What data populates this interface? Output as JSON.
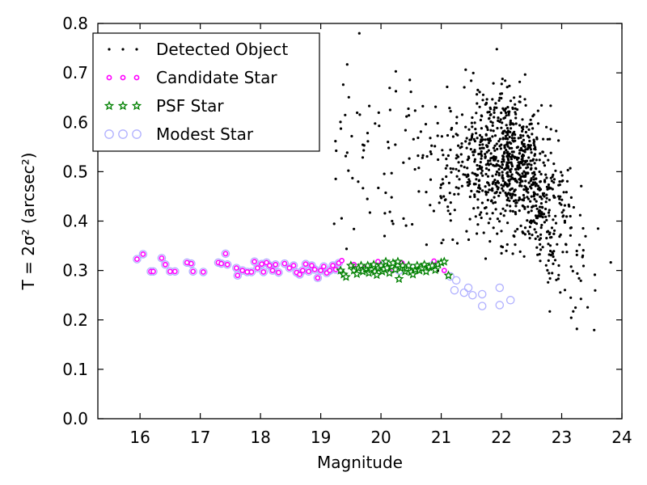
{
  "chart_data": {
    "type": "scatter",
    "xlabel": "Magnitude",
    "ylabel": "T = 2σ² (arcsec²)",
    "xlim": [
      15.3,
      24.0
    ],
    "ylim": [
      0.0,
      0.8
    ],
    "xticks": [
      16,
      17,
      18,
      19,
      20,
      21,
      22,
      23,
      24
    ],
    "yticks": [
      0.0,
      0.1,
      0.2,
      0.3,
      0.4,
      0.5,
      0.6,
      0.7,
      0.8
    ],
    "grid": false,
    "legend_position": "top-left",
    "series": [
      {
        "name": "Detected Object",
        "marker": "dot",
        "color": "#000000",
        "cloud": {
          "x_range": [
            19.0,
            24.0
          ],
          "y_range": [
            0.0,
            0.8
          ],
          "count": 1100,
          "peak_magnitude": 22.2,
          "note_visual": "dense cloud widening and dropping toward faint magnitudes"
        }
      },
      {
        "name": "Candidate Star",
        "marker": "dot",
        "color": "#ff00ff",
        "points": [
          [
            15.95,
            0.323
          ],
          [
            16.05,
            0.333
          ],
          [
            16.18,
            0.298
          ],
          [
            16.22,
            0.298
          ],
          [
            16.36,
            0.325
          ],
          [
            16.42,
            0.312
          ],
          [
            16.5,
            0.298
          ],
          [
            16.58,
            0.298
          ],
          [
            16.78,
            0.316
          ],
          [
            16.85,
            0.314
          ],
          [
            16.88,
            0.298
          ],
          [
            17.05,
            0.297
          ],
          [
            17.3,
            0.316
          ],
          [
            17.35,
            0.314
          ],
          [
            17.42,
            0.334
          ],
          [
            17.45,
            0.312
          ],
          [
            17.6,
            0.305
          ],
          [
            17.62,
            0.29
          ],
          [
            17.7,
            0.3
          ],
          [
            17.78,
            0.297
          ],
          [
            17.85,
            0.297
          ],
          [
            17.9,
            0.318
          ],
          [
            17.95,
            0.305
          ],
          [
            18.02,
            0.313
          ],
          [
            18.05,
            0.297
          ],
          [
            18.1,
            0.316
          ],
          [
            18.15,
            0.31
          ],
          [
            18.2,
            0.3
          ],
          [
            18.25,
            0.312
          ],
          [
            18.3,
            0.296
          ],
          [
            18.4,
            0.314
          ],
          [
            18.48,
            0.305
          ],
          [
            18.55,
            0.31
          ],
          [
            18.6,
            0.296
          ],
          [
            18.65,
            0.292
          ],
          [
            18.7,
            0.3
          ],
          [
            18.75,
            0.313
          ],
          [
            18.8,
            0.298
          ],
          [
            18.85,
            0.31
          ],
          [
            18.9,
            0.302
          ],
          [
            18.95,
            0.285
          ],
          [
            19.0,
            0.3
          ],
          [
            19.05,
            0.308
          ],
          [
            19.1,
            0.295
          ],
          [
            19.15,
            0.3
          ],
          [
            19.2,
            0.31
          ],
          [
            19.25,
            0.302
          ],
          [
            19.3,
            0.315
          ],
          [
            19.35,
            0.32
          ],
          [
            19.55,
            0.312
          ],
          [
            19.72,
            0.305
          ],
          [
            19.95,
            0.318
          ],
          [
            20.15,
            0.298
          ],
          [
            20.35,
            0.315
          ],
          [
            20.6,
            0.305
          ],
          [
            20.88,
            0.319
          ],
          [
            21.05,
            0.3
          ]
        ]
      },
      {
        "name": "PSF Star",
        "marker": "star",
        "color": "#008000",
        "points": [
          [
            19.33,
            0.3
          ],
          [
            19.38,
            0.292
          ],
          [
            19.42,
            0.287
          ],
          [
            19.5,
            0.31
          ],
          [
            19.55,
            0.3
          ],
          [
            19.6,
            0.293
          ],
          [
            19.63,
            0.305
          ],
          [
            19.67,
            0.31
          ],
          [
            19.7,
            0.298
          ],
          [
            19.75,
            0.304
          ],
          [
            19.78,
            0.31
          ],
          [
            19.8,
            0.295
          ],
          [
            19.84,
            0.302
          ],
          [
            19.88,
            0.312
          ],
          [
            19.9,
            0.298
          ],
          [
            19.93,
            0.291
          ],
          [
            19.96,
            0.305
          ],
          [
            20.0,
            0.31
          ],
          [
            20.02,
            0.298
          ],
          [
            20.05,
            0.303
          ],
          [
            20.08,
            0.318
          ],
          [
            20.1,
            0.305
          ],
          [
            20.14,
            0.295
          ],
          [
            20.18,
            0.308
          ],
          [
            20.2,
            0.315
          ],
          [
            20.24,
            0.302
          ],
          [
            20.28,
            0.318
          ],
          [
            20.3,
            0.283
          ],
          [
            20.33,
            0.305
          ],
          [
            20.36,
            0.31
          ],
          [
            20.4,
            0.298
          ],
          [
            20.43,
            0.304
          ],
          [
            20.46,
            0.31
          ],
          [
            20.5,
            0.297
          ],
          [
            20.53,
            0.292
          ],
          [
            20.57,
            0.302
          ],
          [
            20.6,
            0.31
          ],
          [
            20.64,
            0.3
          ],
          [
            20.68,
            0.305
          ],
          [
            20.72,
            0.312
          ],
          [
            20.75,
            0.298
          ],
          [
            20.8,
            0.307
          ],
          [
            20.85,
            0.31
          ],
          [
            20.9,
            0.301
          ],
          [
            20.95,
            0.312
          ],
          [
            21.0,
            0.316
          ],
          [
            21.05,
            0.318
          ],
          [
            21.12,
            0.29
          ]
        ]
      },
      {
        "name": "Modest Star",
        "marker": "circle",
        "color": "#b0b0ff",
        "points": [
          [
            15.95,
            0.323
          ],
          [
            16.05,
            0.333
          ],
          [
            16.18,
            0.298
          ],
          [
            16.22,
            0.298
          ],
          [
            16.36,
            0.325
          ],
          [
            16.42,
            0.312
          ],
          [
            16.5,
            0.298
          ],
          [
            16.58,
            0.298
          ],
          [
            16.78,
            0.316
          ],
          [
            16.85,
            0.314
          ],
          [
            16.88,
            0.298
          ],
          [
            17.05,
            0.297
          ],
          [
            17.3,
            0.316
          ],
          [
            17.35,
            0.314
          ],
          [
            17.42,
            0.334
          ],
          [
            17.45,
            0.312
          ],
          [
            17.6,
            0.305
          ],
          [
            17.62,
            0.29
          ],
          [
            17.7,
            0.3
          ],
          [
            17.78,
            0.297
          ],
          [
            17.85,
            0.297
          ],
          [
            17.9,
            0.318
          ],
          [
            17.95,
            0.305
          ],
          [
            18.02,
            0.313
          ],
          [
            18.05,
            0.297
          ],
          [
            18.1,
            0.316
          ],
          [
            18.15,
            0.31
          ],
          [
            18.2,
            0.3
          ],
          [
            18.25,
            0.312
          ],
          [
            18.3,
            0.296
          ],
          [
            18.4,
            0.314
          ],
          [
            18.48,
            0.305
          ],
          [
            18.55,
            0.31
          ],
          [
            18.6,
            0.296
          ],
          [
            18.65,
            0.292
          ],
          [
            18.7,
            0.3
          ],
          [
            18.75,
            0.313
          ],
          [
            18.8,
            0.298
          ],
          [
            18.85,
            0.31
          ],
          [
            18.9,
            0.302
          ],
          [
            18.95,
            0.285
          ],
          [
            19.0,
            0.3
          ],
          [
            19.05,
            0.308
          ],
          [
            19.1,
            0.295
          ],
          [
            19.15,
            0.3
          ],
          [
            19.2,
            0.31
          ],
          [
            19.25,
            0.302
          ],
          [
            19.3,
            0.315
          ],
          [
            19.6,
            0.3
          ],
          [
            19.85,
            0.305
          ],
          [
            20.05,
            0.31
          ],
          [
            20.3,
            0.3
          ],
          [
            20.55,
            0.305
          ],
          [
            20.85,
            0.31
          ],
          [
            21.15,
            0.288
          ],
          [
            21.22,
            0.26
          ],
          [
            21.38,
            0.255
          ],
          [
            21.45,
            0.265
          ],
          [
            21.52,
            0.25
          ],
          [
            21.68,
            0.252
          ],
          [
            21.68,
            0.228
          ],
          [
            21.97,
            0.265
          ],
          [
            21.97,
            0.23
          ],
          [
            22.15,
            0.24
          ],
          [
            21.25,
            0.28
          ]
        ]
      }
    ]
  }
}
